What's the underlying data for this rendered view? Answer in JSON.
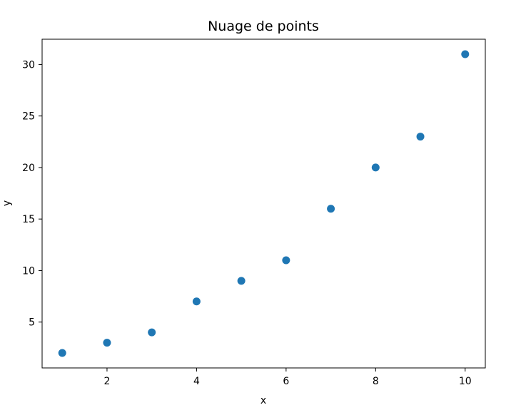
{
  "chart_data": {
    "type": "scatter",
    "title": "Nuage de points",
    "xlabel": "x",
    "ylabel": "y",
    "x": [
      1,
      2,
      3,
      4,
      5,
      6,
      7,
      8,
      9,
      10
    ],
    "y": [
      2,
      3,
      4,
      7,
      9,
      11,
      16,
      20,
      23,
      31
    ],
    "xlim": [
      0.55,
      10.45
    ],
    "ylim": [
      0.55,
      32.45
    ],
    "xticks": [
      2,
      4,
      6,
      8,
      10
    ],
    "yticks": [
      5,
      10,
      15,
      20,
      25,
      30
    ],
    "grid": false,
    "marker_color": "#1f77b4"
  }
}
